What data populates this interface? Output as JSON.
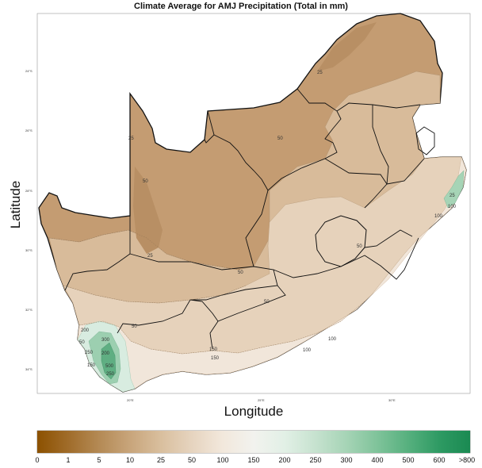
{
  "title": "Climate Average for AMJ Precipitation (Total in mm)",
  "xlabel": "Longitude",
  "ylabel": "Latitude",
  "lat_ticks": [
    "24°S",
    "26°S",
    "28°S",
    "30°S",
    "32°S",
    "34°S"
  ],
  "lon_ticks": [
    "20°E",
    "25°E",
    "30°E"
  ],
  "contour_labels": [
    "25",
    "25",
    "50",
    "25",
    "25",
    "50",
    "50",
    "50",
    "50",
    "100",
    "100",
    "150",
    "100",
    "150",
    "200",
    "50",
    "250",
    "300",
    "200",
    "500",
    "250",
    "100",
    "150",
    "50"
  ],
  "colorbar": {
    "labels": [
      "0",
      "1",
      "5",
      "10",
      "25",
      "50",
      "100",
      "150",
      "200",
      "250",
      "300",
      "400",
      "500",
      "600",
      ">800"
    ],
    "colors": [
      "#8c5100",
      "#a06c2a",
      "#b48a55",
      "#c8a57b",
      "#d9bf9e",
      "#e6d4bf",
      "#f2e8dc",
      "#f2f2ee",
      "#e2f0e6",
      "#c6e2cf",
      "#a6d4b6",
      "#7fc39a",
      "#56b07e",
      "#2e9a63",
      "#1a8a52"
    ]
  },
  "colors": {
    "dry": "#c49c72",
    "medium": "#d8bb9a",
    "light": "#e6d2bb",
    "pale": "#f1e6da",
    "wet_light": "#d8ece0",
    "wet": "#9ccfb0",
    "wet_dark": "#5fae82",
    "sea": "#ffffff"
  }
}
